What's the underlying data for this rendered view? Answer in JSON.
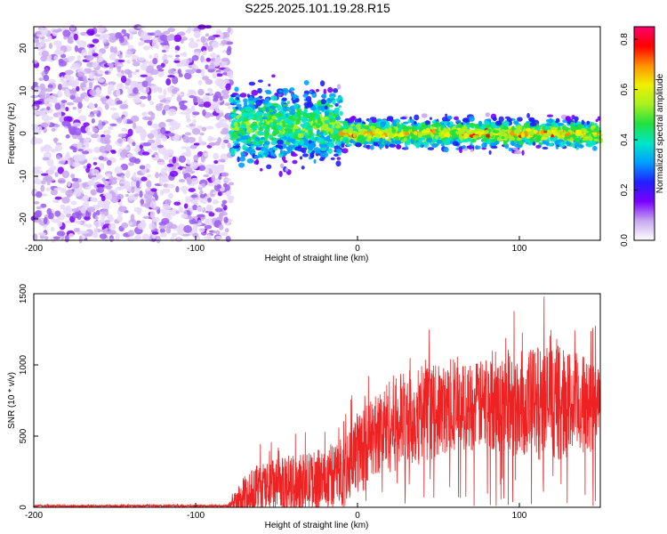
{
  "title": "S225.2025.101.19.28.R15",
  "chart_data": [
    {
      "type": "heatmap",
      "xlabel": "Height of straight line (km)",
      "ylabel": "Frequency (Hz)",
      "xlim": [
        -200,
        150
      ],
      "ylim": [
        -25,
        25
      ],
      "xticks": [
        -200,
        -100,
        0,
        100
      ],
      "yticks": [
        -20,
        -10,
        0,
        10,
        20
      ],
      "colorbar": {
        "label": "Normalized spectral amplitude",
        "range": [
          0,
          0.85
        ],
        "ticks": [
          "0.0",
          "0.2",
          "0.4",
          "0.6",
          "0.8"
        ],
        "stops": [
          "#ffffff",
          "#c8a8f0",
          "#7a00ff",
          "#2020ff",
          "#00a0ff",
          "#00e6c8",
          "#20e040",
          "#a8f020",
          "#f0f000",
          "#ff9000",
          "#ff0000",
          "#ff0070"
        ]
      },
      "regions": [
        {
          "x": [
            -200,
            -78
          ],
          "description": "broadband noise"
        },
        {
          "x": [
            -78,
            -10
          ],
          "centre_hz": 2,
          "spread_hz": 8
        },
        {
          "x": [
            -10,
            150
          ],
          "centre_hz": 0,
          "spread_hz": 3
        }
      ]
    },
    {
      "type": "line",
      "xlabel": "Height of straight line (km)",
      "ylabel": "SNR (10 * v/v)",
      "xlim": [
        -200,
        150
      ],
      "ylim": [
        0,
        1500
      ],
      "xticks": [
        -200,
        -100,
        0,
        100
      ],
      "yticks": [
        0,
        500,
        1000,
        1500
      ],
      "color": "#ee2222",
      "envelope": {
        "x": [
          -200,
          -80,
          -70,
          -60,
          -40,
          -20,
          -10,
          0,
          10,
          20,
          40,
          60,
          80,
          100,
          120,
          140,
          150
        ],
        "mean": [
          10,
          10,
          60,
          130,
          160,
          200,
          250,
          400,
          500,
          580,
          650,
          700,
          720,
          730,
          740,
          720,
          700
        ],
        "peak": [
          25,
          25,
          350,
          480,
          520,
          600,
          700,
          900,
          1000,
          1200,
          1280,
          1250,
          1300,
          1420,
          1500,
          1350,
          1300
        ]
      }
    }
  ]
}
